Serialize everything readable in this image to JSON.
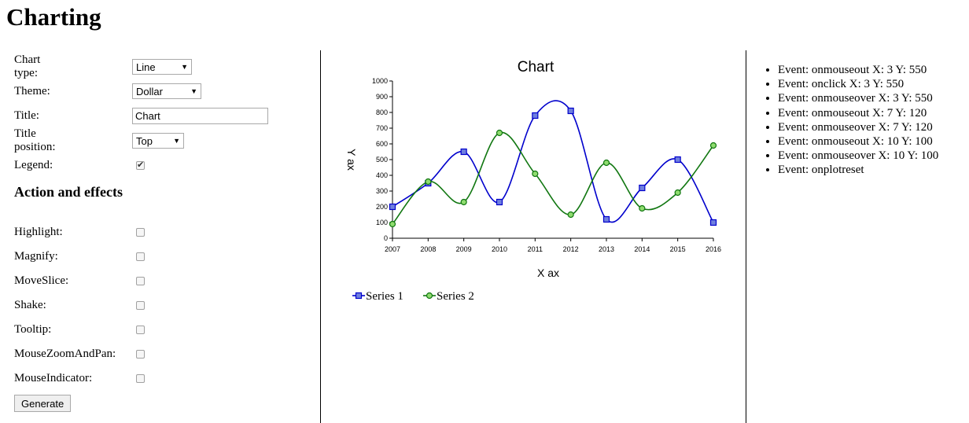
{
  "page_title": "Charting",
  "form": {
    "chart_type": {
      "label": "Chart type:",
      "value": "Line"
    },
    "theme": {
      "label": "Theme:",
      "value": "Dollar"
    },
    "title": {
      "label": "Title:",
      "value": "Chart"
    },
    "title_position": {
      "label": "Title position:",
      "value": "Top"
    },
    "legend": {
      "label": "Legend:",
      "checked": true
    }
  },
  "actions": {
    "heading": "Action and effects",
    "items": [
      {
        "label": "Highlight:",
        "checked": false
      },
      {
        "label": "Magnify:",
        "checked": false
      },
      {
        "label": "MoveSlice:",
        "checked": false
      },
      {
        "label": "Shake:",
        "checked": false
      },
      {
        "label": "Tooltip:",
        "checked": false
      },
      {
        "label": "MouseZoomAndPan:",
        "checked": false
      },
      {
        "label": "MouseIndicator:",
        "checked": false
      }
    ],
    "generate_label": "Generate"
  },
  "chart_data": {
    "type": "line",
    "title": "Chart",
    "xlabel": "X ax",
    "ylabel": "Y ax",
    "x": [
      2007,
      2008,
      2009,
      2010,
      2011,
      2012,
      2013,
      2014,
      2015,
      2016
    ],
    "ylim": [
      0,
      1000
    ],
    "yticks": [
      0,
      100,
      200,
      300,
      400,
      500,
      600,
      700,
      800,
      900,
      1000
    ],
    "series": [
      {
        "name": "Series 1",
        "color": "#0000cc",
        "marker": "square",
        "values": [
          200,
          350,
          550,
          230,
          780,
          810,
          120,
          320,
          500,
          100
        ]
      },
      {
        "name": "Series 2",
        "color": "#117711",
        "marker": "circle",
        "values": [
          90,
          360,
          230,
          670,
          410,
          150,
          480,
          190,
          290,
          590
        ]
      }
    ],
    "legend": "bottom-left",
    "grid": false
  },
  "events": [
    "Event: onmouseout X: 3 Y: 550",
    "Event: onclick X: 3 Y: 550",
    "Event: onmouseover X: 3 Y: 550",
    "Event: onmouseout X: 7 Y: 120",
    "Event: onmouseover X: 7 Y: 120",
    "Event: onmouseout X: 10 Y: 100",
    "Event: onmouseover X: 10 Y: 100",
    "Event: onplotreset"
  ]
}
